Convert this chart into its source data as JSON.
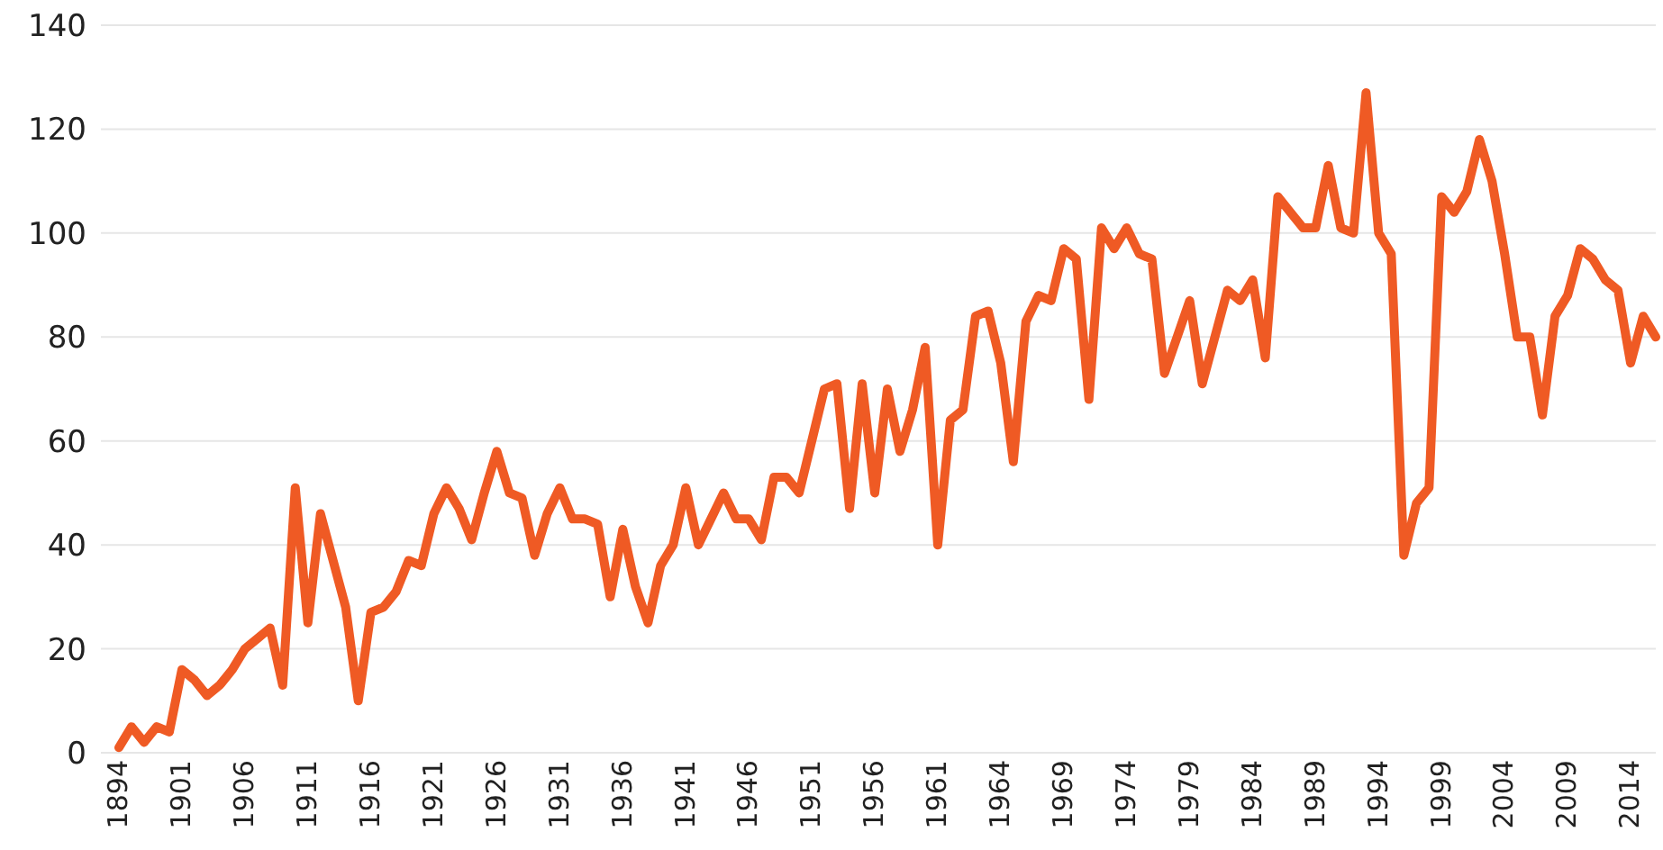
{
  "chart_data": {
    "type": "line",
    "categories": [
      "1894",
      null,
      null,
      null,
      null,
      "1901",
      null,
      null,
      null,
      null,
      "1906",
      null,
      null,
      null,
      null,
      "1911",
      null,
      null,
      null,
      null,
      "1916",
      null,
      null,
      null,
      null,
      "1921",
      null,
      null,
      null,
      null,
      "1926",
      null,
      null,
      null,
      null,
      "1931",
      null,
      null,
      null,
      null,
      "1936",
      null,
      null,
      null,
      null,
      "1941",
      null,
      null,
      null,
      null,
      "1946",
      null,
      null,
      null,
      null,
      "1951",
      null,
      null,
      null,
      null,
      "1956",
      null,
      null,
      null,
      null,
      "1961",
      null,
      null,
      null,
      null,
      "1964",
      null,
      null,
      null,
      null,
      "1969",
      null,
      null,
      null,
      null,
      "1974",
      null,
      null,
      null,
      null,
      "1979",
      null,
      null,
      null,
      null,
      "1984",
      null,
      null,
      null,
      null,
      "1989",
      null,
      null,
      null,
      null,
      "1994",
      null,
      null,
      null,
      null,
      "1999",
      null,
      null,
      null,
      null,
      "2004",
      null,
      null,
      null,
      null,
      "2009",
      null,
      null,
      null,
      null,
      "2014",
      null,
      null
    ],
    "series": [
      {
        "color": "#ef5a24",
        "values": [
          1,
          5,
          2,
          5,
          4,
          16,
          14,
          11,
          13,
          16,
          20,
          22,
          24,
          13,
          51,
          25,
          46,
          37,
          28,
          10,
          27,
          28,
          31,
          37,
          36,
          46,
          51,
          47,
          41,
          50,
          58,
          50,
          49,
          38,
          46,
          51,
          45,
          45,
          44,
          30,
          43,
          32,
          25,
          36,
          40,
          51,
          40,
          45,
          50,
          45,
          45,
          41,
          53,
          53,
          50,
          60,
          70,
          71,
          47,
          71,
          50,
          70,
          58,
          66,
          78,
          40,
          64,
          66,
          84,
          85,
          75,
          56,
          83,
          88,
          87,
          97,
          95,
          68,
          101,
          97,
          101,
          96,
          95,
          73,
          80,
          87,
          71,
          80,
          89,
          87,
          91,
          76,
          107,
          104,
          101,
          101,
          113,
          101,
          100,
          127,
          100,
          96,
          38,
          48,
          51,
          107,
          104,
          108,
          118,
          110,
          96,
          80,
          80,
          65,
          84,
          88,
          97,
          95,
          91,
          89,
          75,
          84,
          80
        ]
      }
    ],
    "ylim": [
      0,
      140
    ],
    "yticks": [
      0,
      20,
      40,
      60,
      80,
      100,
      120,
      140
    ],
    "grid": "y",
    "marker": "none",
    "line_style": "solid"
  }
}
